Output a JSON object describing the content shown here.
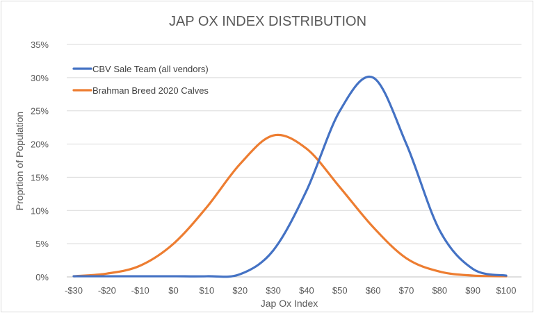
{
  "chart_data": {
    "type": "line",
    "title": "JAP OX INDEX DISTRIBUTION",
    "xlabel": "Jap Ox Index",
    "ylabel": "Proprtion of Population",
    "x": [
      -30,
      -20,
      -10,
      0,
      10,
      20,
      30,
      40,
      50,
      60,
      70,
      80,
      90,
      100
    ],
    "x_tick_labels": [
      "-$30",
      "-$20",
      "-$10",
      "$0",
      "$10",
      "$20",
      "$30",
      "$40",
      "$50",
      "$60",
      "$70",
      "$80",
      "$90",
      "$100"
    ],
    "ylim": [
      0,
      0.35
    ],
    "y_ticks": [
      0,
      0.05,
      0.1,
      0.15,
      0.2,
      0.25,
      0.3,
      0.35
    ],
    "y_tick_labels": [
      "0%",
      "5%",
      "10%",
      "15%",
      "20%",
      "25%",
      "30%",
      "35%"
    ],
    "grid": true,
    "legend_position": "top-left",
    "series": [
      {
        "name": "CBV Sale Team (all vendors)",
        "color": "#4472c4",
        "values": [
          0.001,
          0.001,
          0.001,
          0.001,
          0.001,
          0.004,
          0.04,
          0.13,
          0.25,
          0.3,
          0.2,
          0.07,
          0.012,
          0.002
        ]
      },
      {
        "name": "Brahman Breed 2020 Calves",
        "color": "#ed7d31",
        "values": [
          0.001,
          0.005,
          0.017,
          0.05,
          0.105,
          0.17,
          0.213,
          0.193,
          0.135,
          0.075,
          0.028,
          0.008,
          0.002,
          0.001
        ]
      }
    ]
  }
}
